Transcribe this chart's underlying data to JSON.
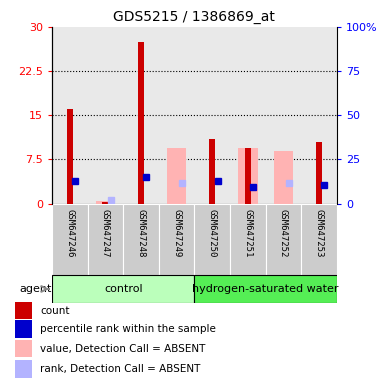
{
  "title": "GDS5215 / 1386869_at",
  "samples": [
    "GSM647246",
    "GSM647247",
    "GSM647248",
    "GSM647249",
    "GSM647250",
    "GSM647251",
    "GSM647252",
    "GSM647253"
  ],
  "count_values": [
    16.0,
    0.3,
    27.5,
    0.0,
    11.0,
    9.5,
    0.0,
    10.5
  ],
  "rank_values": [
    13.0,
    null,
    15.0,
    null,
    13.0,
    9.5,
    null,
    10.5
  ],
  "absent_value_values": [
    null,
    0.4,
    null,
    9.5,
    null,
    9.5,
    9.0,
    null
  ],
  "absent_rank_values": [
    null,
    2.0,
    null,
    11.5,
    null,
    null,
    11.5,
    null
  ],
  "count_color": "#cc0000",
  "rank_color": "#0000cc",
  "absent_value_color": "#ffb3b3",
  "absent_rank_color": "#b3b3ff",
  "control_bg": "#bbffbb",
  "h2water_bg": "#55ee55",
  "sample_bg": "#cccccc",
  "ylim_left": [
    0,
    30
  ],
  "ylim_right": [
    0,
    100
  ],
  "yticks_left": [
    0,
    7.5,
    15,
    22.5,
    30
  ],
  "ytick_labels_left": [
    "0",
    "7.5",
    "15",
    "22.5",
    "30"
  ],
  "yticks_right": [
    0,
    25,
    50,
    75,
    100
  ],
  "ytick_labels_right": [
    "0",
    "25",
    "50",
    "75",
    "100%"
  ],
  "agent_label": "agent",
  "control_label": "control",
  "h2water_label": "hydrogen-saturated water",
  "legend_items": [
    {
      "label": "count",
      "color": "#cc0000"
    },
    {
      "label": "percentile rank within the sample",
      "color": "#0000cc"
    },
    {
      "label": "value, Detection Call = ABSENT",
      "color": "#ffb3b3"
    },
    {
      "label": "rank, Detection Call = ABSENT",
      "color": "#b3b3ff"
    }
  ]
}
